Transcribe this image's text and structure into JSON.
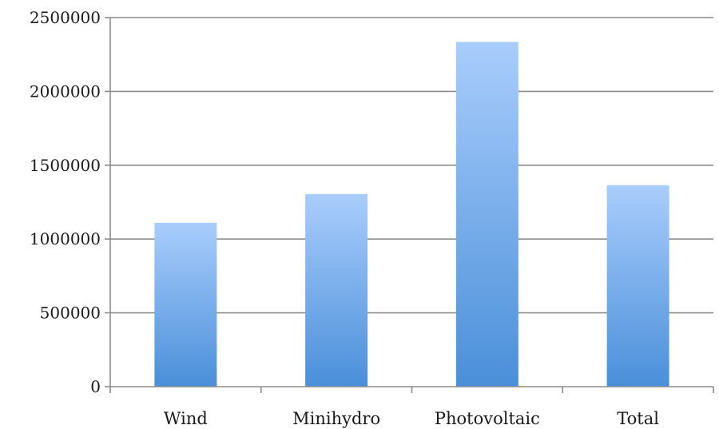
{
  "chart_data": {
    "type": "bar",
    "categories": [
      "Wind",
      "Minihydro",
      "Photovoltaic",
      "Total"
    ],
    "values": [
      1110000,
      1305000,
      2335000,
      1365000
    ],
    "ylim": [
      0,
      2500000
    ],
    "yticks": [
      "0",
      "500000",
      "1000000",
      "1500000",
      "2000000",
      "2500000"
    ],
    "grid": true,
    "legend": "none",
    "colors": {
      "bar_top": "#a9cdfc",
      "bar_bottom": "#4a8fd9",
      "gridline": "#8c8c8c"
    }
  }
}
